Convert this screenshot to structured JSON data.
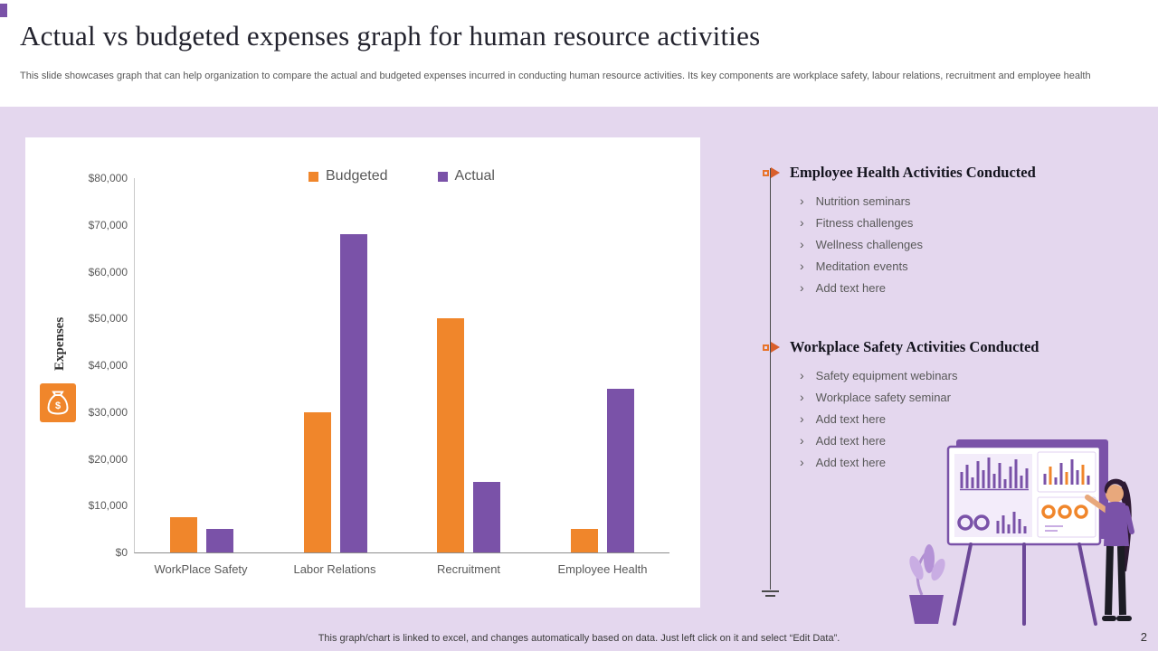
{
  "slide": {
    "title": "Actual vs budgeted expenses graph for human resource activities",
    "subtitle": "This slide showcases graph that can help organization to compare the actual and budgeted expenses incurred in conducting human resource activities. Its key components are workplace safety, labour relations, recruitment and employee health",
    "footer_note": "This graph/chart is linked to excel, and changes automatically based on data. Just left click on it and select “Edit Data”.",
    "page_number": "2"
  },
  "colors": {
    "background": "#E4D7EE",
    "budgeted": "#F0862B",
    "actual": "#7A52A8",
    "accent_orange": "#E8742C",
    "text_muted": "#595959"
  },
  "chart_data": {
    "type": "bar",
    "title": "",
    "categories": [
      "WorkPlace Safety",
      "Labor Relations",
      "Recruitment",
      "Employee Health"
    ],
    "series": [
      {
        "name": "Budgeted",
        "color": "#F0862B",
        "values": [
          7500,
          30000,
          50000,
          5000
        ]
      },
      {
        "name": "Actual",
        "color": "#7A52A8",
        "values": [
          5000,
          68000,
          15000,
          35000
        ]
      }
    ],
    "xlabel": "",
    "ylabel": "Expenses",
    "ylim": [
      0,
      80000
    ],
    "ytick_step": 10000,
    "ytick_labels": [
      "$0",
      "$10,000",
      "$20,000",
      "$30,000",
      "$40,000",
      "$50,000",
      "$60,000",
      "$70,000",
      "$80,000"
    ],
    "grid": false,
    "legend_position": "top-center"
  },
  "sections": [
    {
      "title": "Employee Health Activities Conducted",
      "items": [
        "Nutrition seminars",
        "Fitness challenges",
        "Wellness challenges",
        "Meditation events",
        "Add text here"
      ]
    },
    {
      "title": "Workplace Safety Activities Conducted",
      "items": [
        "Safety equipment webinars",
        "Workplace safety seminar",
        "Add text here",
        "Add text here",
        "Add text here"
      ]
    }
  ],
  "icons": {
    "bullet": "›",
    "expenses_icon": "money-bag",
    "section_marker_icon": "square-triangle"
  }
}
